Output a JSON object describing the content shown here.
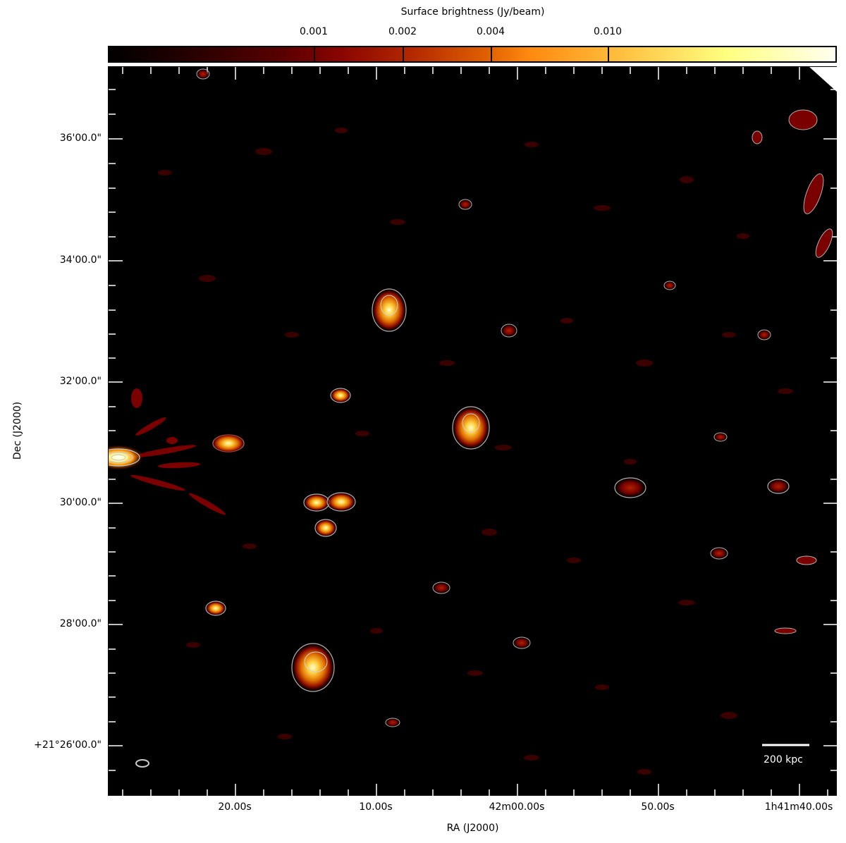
{
  "colorbar": {
    "title": "Surface brightness (Jy/beam)",
    "ticks": [
      "0.001",
      "0.002",
      "0.004",
      "0.010"
    ]
  },
  "axes": {
    "xlabel": "RA (J2000)",
    "ylabel": "Dec (J2000)",
    "ra_ticks": [
      "20.00s",
      "10.00s",
      "42m00.00s",
      "50.00s",
      "1h41m40.00s"
    ],
    "dec_ticks": [
      "36'00.0\"",
      "34'00.0\"",
      "32'00.0\"",
      "30'00.0\"",
      "28'00.0\"",
      "+21°26'00.0\""
    ]
  },
  "scalebar": {
    "label": "200 kpc"
  },
  "colors": {
    "background": "#000000",
    "contour": "#b0b0b0",
    "diffuse": "#6a0000",
    "core": "#ffff80"
  }
}
